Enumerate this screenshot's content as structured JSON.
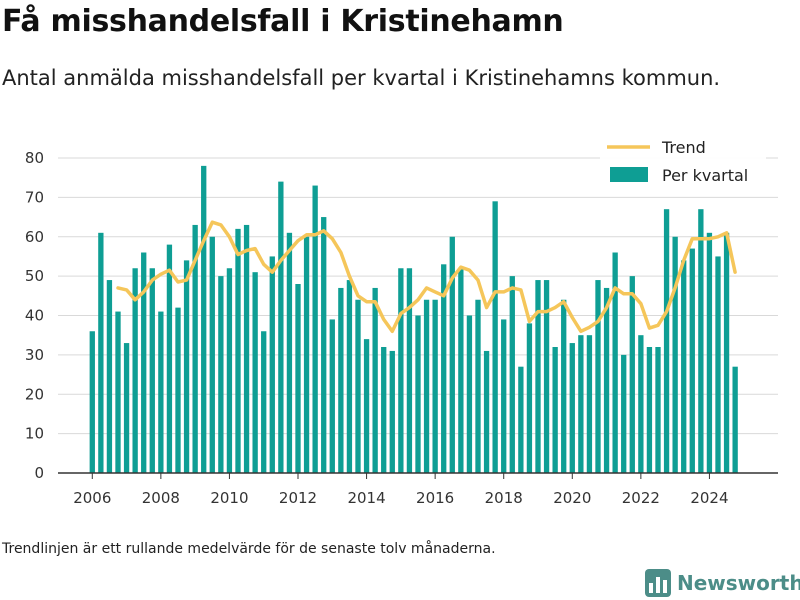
{
  "title": "Få misshandelsfall i Kristinehamn",
  "subtitle": "Antal anmälda misshandelsfall per kvartal i Kristinehamns kommun.",
  "note": "Trendlinjen är ett rullande medelvärde för de senaste tolv månaderna.",
  "logo": {
    "text": "Newsworthy",
    "icon": "bar-chart-logo-icon"
  },
  "colors": {
    "bar": "#0e9e94",
    "trend": "#f5c65a",
    "grid": "#d9d9d9",
    "axis": "#333333",
    "logo": "#4c8d88"
  },
  "chart_data": {
    "type": "bar",
    "xlabel": "",
    "ylabel": "",
    "xlim": [
      2005,
      2026
    ],
    "ylim": [
      0,
      80
    ],
    "y_ticks": [
      0,
      10,
      20,
      30,
      40,
      50,
      60,
      70,
      80
    ],
    "x_ticks": [
      2006,
      2008,
      2010,
      2012,
      2014,
      2016,
      2018,
      2020,
      2022,
      2024
    ],
    "grid": true,
    "legend": {
      "position": "top-right",
      "entries": [
        "Trend",
        "Per kvartal"
      ]
    },
    "categories": [
      "2006 Q1",
      "2006 Q2",
      "2006 Q3",
      "2006 Q4",
      "2007 Q1",
      "2007 Q2",
      "2007 Q3",
      "2007 Q4",
      "2008 Q1",
      "2008 Q2",
      "2008 Q3",
      "2008 Q4",
      "2009 Q1",
      "2009 Q2",
      "2009 Q3",
      "2009 Q4",
      "2010 Q1",
      "2010 Q2",
      "2010 Q3",
      "2010 Q4",
      "2011 Q1",
      "2011 Q2",
      "2011 Q3",
      "2011 Q4",
      "2012 Q1",
      "2012 Q2",
      "2012 Q3",
      "2012 Q4",
      "2013 Q1",
      "2013 Q2",
      "2013 Q3",
      "2013 Q4",
      "2014 Q1",
      "2014 Q2",
      "2014 Q3",
      "2014 Q4",
      "2015 Q1",
      "2015 Q2",
      "2015 Q3",
      "2015 Q4",
      "2016 Q1",
      "2016 Q2",
      "2016 Q3",
      "2016 Q4",
      "2017 Q1",
      "2017 Q2",
      "2017 Q3",
      "2017 Q4",
      "2018 Q1",
      "2018 Q2",
      "2018 Q3",
      "2018 Q4",
      "2019 Q1",
      "2019 Q2",
      "2019 Q3",
      "2019 Q4",
      "2020 Q1",
      "2020 Q2",
      "2020 Q3",
      "2020 Q4",
      "2021 Q1",
      "2021 Q2",
      "2021 Q3",
      "2021 Q4",
      "2022 Q1",
      "2022 Q2",
      "2022 Q3",
      "2022 Q4",
      "2023 Q1",
      "2023 Q2",
      "2023 Q3",
      "2023 Q4",
      "2024 Q1",
      "2024 Q2",
      "2024 Q3",
      "2024 Q4"
    ],
    "series": [
      {
        "name": "Per kvartal",
        "type": "bar",
        "values": [
          36,
          61,
          49,
          41,
          33,
          52,
          56,
          52,
          41,
          58,
          42,
          54,
          63,
          78,
          60,
          50,
          52,
          62,
          63,
          51,
          36,
          55,
          74,
          61,
          48,
          60,
          73,
          65,
          39,
          47,
          49,
          44,
          34,
          47,
          32,
          31,
          52,
          52,
          40,
          44,
          44,
          53,
          60,
          52,
          40,
          44,
          31,
          69,
          39,
          50,
          27,
          38,
          49,
          49,
          32,
          44,
          33,
          35,
          35,
          49,
          47,
          56,
          30,
          50,
          35,
          32,
          32,
          67,
          60,
          54,
          57,
          67,
          61,
          55,
          61,
          27
        ]
      },
      {
        "name": "Trend",
        "type": "line",
        "values": [
          null,
          null,
          null,
          47,
          46.5,
          44,
          46,
          49,
          50.5,
          51.5,
          48.5,
          49,
          54,
          59,
          63.7,
          63,
          60,
          55.5,
          56.5,
          57,
          53,
          51,
          54,
          56.5,
          59,
          60.5,
          60.5,
          61.5,
          59.5,
          56,
          50,
          45,
          43.5,
          43.5,
          39,
          36,
          40.5,
          42,
          44,
          47,
          46,
          45,
          49.5,
          52.3,
          51.5,
          49,
          42,
          46,
          46,
          47,
          46.5,
          38.5,
          41,
          41,
          42,
          43.5,
          39.5,
          36,
          37,
          38.5,
          42,
          47,
          45.5,
          45.5,
          43,
          36.8,
          37.5,
          41,
          47,
          54,
          59.5,
          59.5,
          59.5,
          60,
          61,
          51
        ]
      }
    ]
  }
}
